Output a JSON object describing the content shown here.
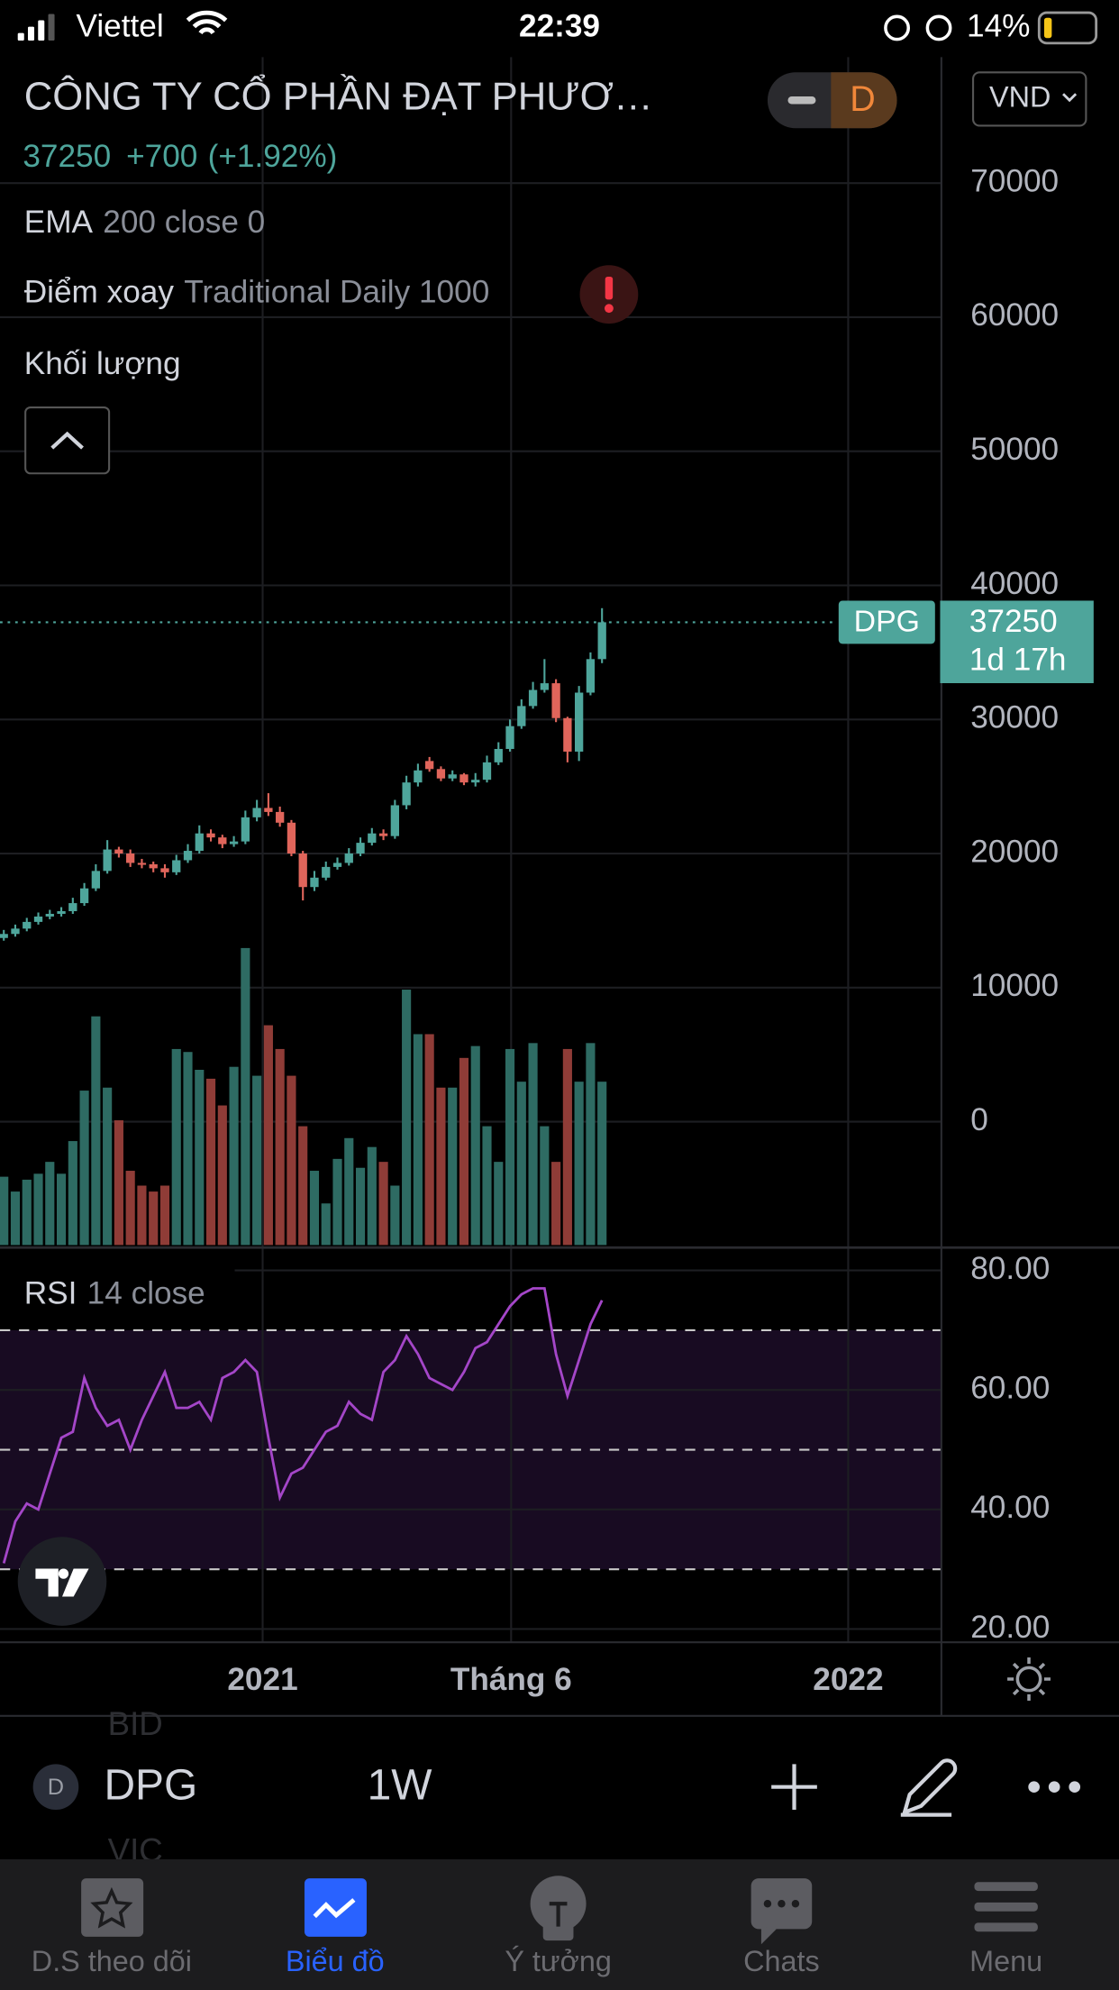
{
  "status_bar": {
    "carrier": "Viettel",
    "time": "22:39",
    "battery": "14%"
  },
  "header": {
    "title": "CÔNG TY CỔ PHẦN ĐẠT PHƯƠ…",
    "change": "+700",
    "change_percent": "(+1.92%)",
    "interval_badge": "D",
    "currency": "VND"
  },
  "indicators": [
    {
      "name": "EMA",
      "params": "200 close 0"
    },
    {
      "name": "Điểm xoay",
      "params": "Traditional Daily 1000"
    },
    {
      "name": "Khối lượng"
    }
  ],
  "chart_data": [
    {
      "type": "candlestick",
      "symbol": "DPG",
      "countdown": "1d 17h",
      "open": [
        13700,
        14000,
        14400,
        14900,
        15300,
        15500,
        15700,
        16300,
        17400,
        18700,
        20300,
        20000,
        19300,
        19200,
        18900,
        18600,
        19500,
        20200,
        21500,
        21200,
        20700,
        20900,
        22700,
        23400,
        23100,
        22300,
        20000,
        17500,
        18200,
        19000,
        19300,
        20000,
        20800,
        21500,
        21300,
        23600,
        25300,
        26900,
        26300,
        25600,
        25900,
        25300,
        25500,
        26800,
        27800,
        29500,
        31000,
        32200,
        32700,
        30100,
        27600,
        32000,
        34500
      ],
      "high": [
        14300,
        14700,
        15200,
        15600,
        15800,
        16000,
        16700,
        17800,
        19200,
        21000,
        20500,
        20300,
        19600,
        19400,
        19200,
        19900,
        20700,
        22100,
        21800,
        21400,
        21300,
        23200,
        24000,
        24500,
        23500,
        22500,
        20200,
        18700,
        19400,
        19700,
        20400,
        21200,
        21900,
        21800,
        24000,
        25800,
        26700,
        27200,
        26500,
        26200,
        26000,
        26000,
        27300,
        28300,
        30000,
        31500,
        32800,
        34500,
        33000,
        30200,
        32500,
        35000,
        38300
      ],
      "low": [
        13500,
        13800,
        14200,
        14700,
        15100,
        15300,
        15500,
        16100,
        17200,
        18500,
        19700,
        19000,
        18900,
        18600,
        18200,
        18400,
        19300,
        20000,
        20900,
        20400,
        20500,
        20700,
        22400,
        22800,
        22000,
        19800,
        16500,
        17200,
        18000,
        18800,
        19100,
        19800,
        20600,
        21000,
        21100,
        23300,
        25000,
        26100,
        25400,
        25400,
        25100,
        25000,
        25300,
        26600,
        27600,
        29300,
        30800,
        32000,
        29800,
        26800,
        26900,
        31800,
        34200
      ],
      "close": [
        14000,
        14400,
        14900,
        15300,
        15500,
        15700,
        16300,
        17400,
        18700,
        20300,
        20000,
        19300,
        19200,
        18900,
        18600,
        19500,
        20200,
        21500,
        21200,
        20700,
        20900,
        22700,
        23400,
        23100,
        22300,
        20000,
        17500,
        18200,
        19000,
        19300,
        20000,
        20800,
        21500,
        21300,
        23600,
        25300,
        26200,
        26300,
        25600,
        25900,
        25300,
        25500,
        26800,
        27800,
        29500,
        31000,
        32200,
        32700,
        30100,
        27600,
        32000,
        34500,
        37250
      ],
      "up_color": "#4ea59b",
      "down_color": "#e0655b",
      "xlim": [
        -0.33,
        81.5
      ],
      "xticks": [
        {
          "value": 22.5,
          "label": "2021"
        },
        {
          "value": 44.1,
          "label": "Tháng 6"
        },
        {
          "value": 73.4,
          "label": "2022"
        }
      ],
      "ylim": [
        -9200,
        79400
      ],
      "yticks": [
        0,
        10000,
        20000,
        30000,
        40000,
        50000,
        60000,
        70000
      ],
      "grid": true
    },
    {
      "type": "bar",
      "values": [
        23,
        18,
        22,
        24,
        28,
        24,
        35,
        52,
        77,
        53,
        42,
        25,
        20,
        18,
        20,
        66,
        65,
        59,
        56,
        47,
        60,
        100,
        57,
        74,
        66,
        57,
        40,
        25,
        14,
        29,
        36,
        26,
        33,
        28,
        20,
        86,
        71,
        71,
        53,
        53,
        63,
        67,
        40,
        28,
        66,
        55,
        68,
        40,
        28,
        66,
        55,
        68,
        55
      ],
      "up_color": "#2e6b63",
      "down_color": "#8f3c37",
      "ylim": [
        0,
        100
      ]
    },
    {
      "type": "line",
      "name": "RSI",
      "params": "14 close",
      "values": [
        31,
        38,
        41,
        40,
        46,
        52,
        53,
        62,
        57,
        54,
        55,
        50,
        55,
        59,
        63,
        57,
        57,
        58,
        55,
        62,
        63,
        65,
        63,
        52,
        42,
        46,
        47,
        50,
        53,
        54,
        58,
        56,
        55,
        63,
        65,
        69,
        66,
        62,
        61,
        60,
        63,
        67,
        68,
        71,
        74,
        76,
        77,
        77,
        66,
        59,
        65,
        71,
        75
      ],
      "color": "#a446c8",
      "band_color": "#180b22",
      "levels": [
        30,
        50,
        70
      ],
      "ylim": [
        18,
        83.4
      ],
      "yticks": [
        {
          "value": 20,
          "label": "20.00"
        },
        {
          "value": 40,
          "label": "40.00"
        },
        {
          "value": 60,
          "label": "60.00"
        },
        {
          "value": 80,
          "label": "80.00"
        }
      ]
    }
  ],
  "toolbar": {
    "symbol_badge": "D",
    "symbol": "DPG",
    "interval": "1W",
    "watchlist_peek": [
      "BID",
      "VIC"
    ]
  },
  "tabs": [
    "D.S theo dõi",
    "Biểu đồ",
    "Ý tưởng",
    "Chats",
    "Menu"
  ],
  "active_tab": 1
}
